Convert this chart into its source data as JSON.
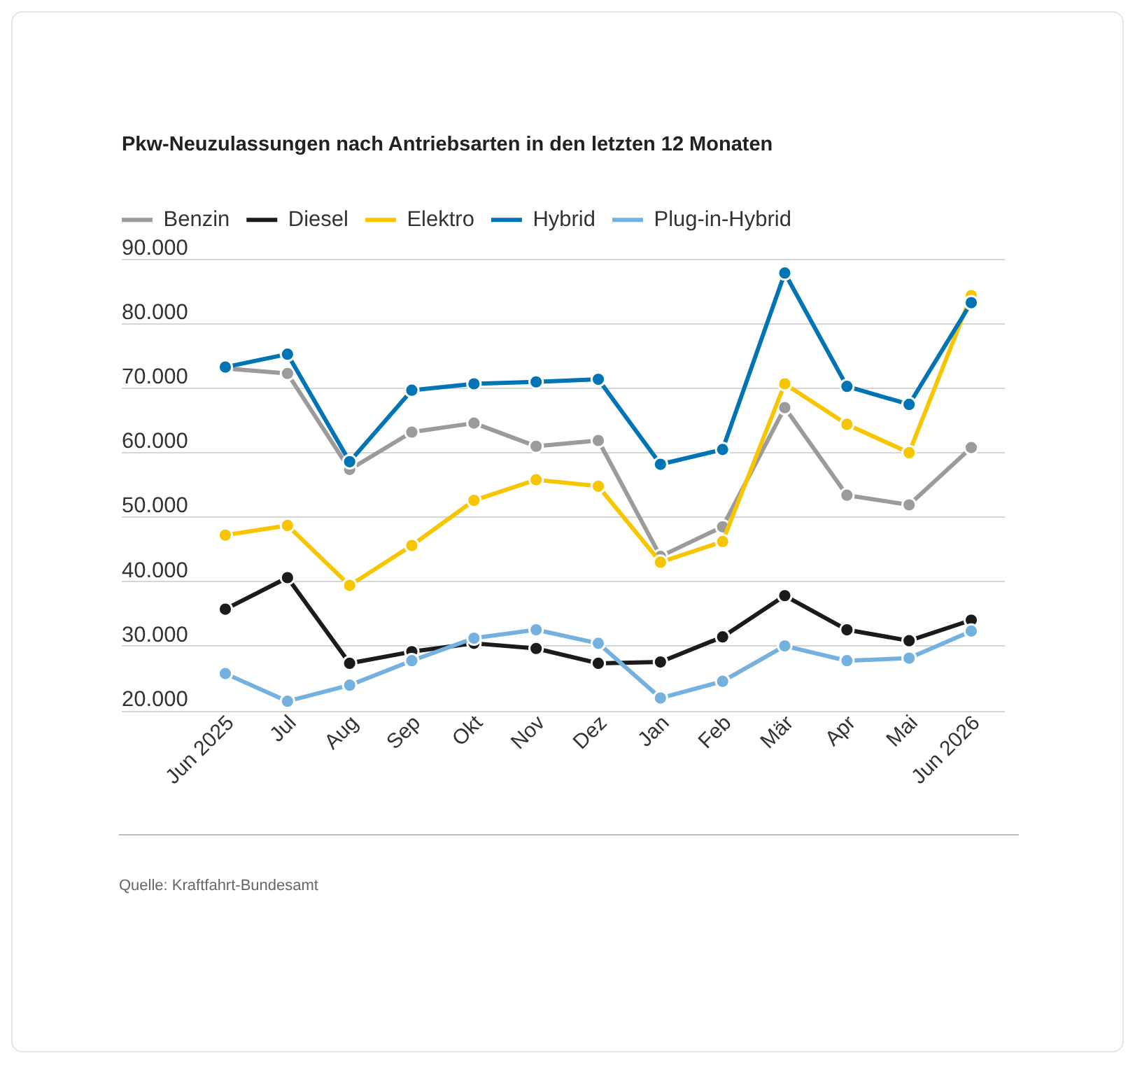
{
  "chart_data": {
    "type": "line",
    "title": "Pkw-Neuzulassungen nach Antriebsarten in den letzten 12 Monaten",
    "categories": [
      "Jun 2025",
      "Jul",
      "Aug",
      "Sep",
      "Okt",
      "Nov",
      "Dez",
      "Jan",
      "Feb",
      "Mär",
      "Apr",
      "Mai",
      "Jun 2026"
    ],
    "series": [
      {
        "name": "Benzin",
        "color": "#9b9b9b",
        "values": [
          73200,
          72400,
          57500,
          63300,
          64700,
          61100,
          62000,
          44000,
          48600,
          67100,
          53500,
          52000,
          60900
        ]
      },
      {
        "name": "Diesel",
        "color": "#1b1b1b",
        "values": [
          35800,
          40700,
          27400,
          29200,
          30500,
          29700,
          27400,
          27600,
          31500,
          37900,
          32600,
          30900,
          34100
        ]
      },
      {
        "name": "Elektro",
        "color": "#f7c600",
        "values": [
          47300,
          48800,
          39500,
          45700,
          52700,
          55900,
          54900,
          43100,
          46300,
          70800,
          64500,
          60100,
          84500
        ]
      },
      {
        "name": "Hybrid",
        "color": "#0074b4",
        "values": [
          73400,
          75400,
          58700,
          69800,
          70800,
          71100,
          71500,
          58300,
          60600,
          88000,
          70400,
          67600,
          83400
        ]
      },
      {
        "name": "Plug-in-Hybrid",
        "color": "#75b1de",
        "values": [
          25800,
          21500,
          24000,
          27800,
          31300,
          32600,
          30500,
          22000,
          24600,
          30100,
          27800,
          28200,
          32400
        ]
      }
    ],
    "ylim": [
      20000,
      90000
    ],
    "yticks": [
      {
        "value": 20000,
        "label": "20.000"
      },
      {
        "value": 30000,
        "label": "30.000"
      },
      {
        "value": 40000,
        "label": "40.000"
      },
      {
        "value": 50000,
        "label": "50.000"
      },
      {
        "value": 60000,
        "label": "60.000"
      },
      {
        "value": 70000,
        "label": "70.000"
      },
      {
        "value": 80000,
        "label": "80.000"
      },
      {
        "value": 90000,
        "label": "90.000"
      }
    ],
    "grid": "y",
    "legend": "top left",
    "marker": "circle",
    "annotations": [
      "Quelle: Kraftfahrt-Bundesamt"
    ]
  }
}
